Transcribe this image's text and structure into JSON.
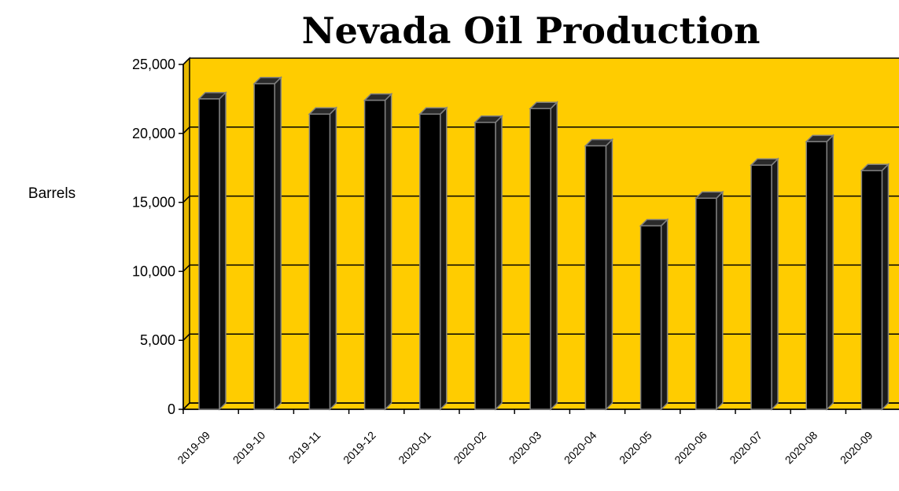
{
  "chart_data": {
    "type": "bar",
    "title": "Nevada Oil Production",
    "ylabel": "Barrels",
    "xlabel": "",
    "categories": [
      "2019-09",
      "2019-10",
      "2019-11",
      "2019-12",
      "2020-01",
      "2020-02",
      "2020-03",
      "2020-04",
      "2020-05",
      "2020-06",
      "2020-07",
      "2020-08",
      "2020-09"
    ],
    "values": [
      22500,
      23600,
      21400,
      22400,
      21400,
      20800,
      21800,
      19100,
      13300,
      15300,
      17700,
      19400,
      17300
    ],
    "ylim": [
      0,
      25000
    ],
    "yticks": [
      0,
      5000,
      10000,
      15000,
      20000,
      25000
    ],
    "ytick_labels": [
      "0",
      "5,000",
      "10,000",
      "15,000",
      "20,000",
      "25,000"
    ],
    "grid": true,
    "legend": "none",
    "colors": {
      "plot_background": "#FFCC00",
      "bar_front": "#000000",
      "bar_side": "#1a1a1a",
      "bar_top": "#2a2a2a",
      "bar_edge": "#808080",
      "gridline": "#000000"
    }
  }
}
